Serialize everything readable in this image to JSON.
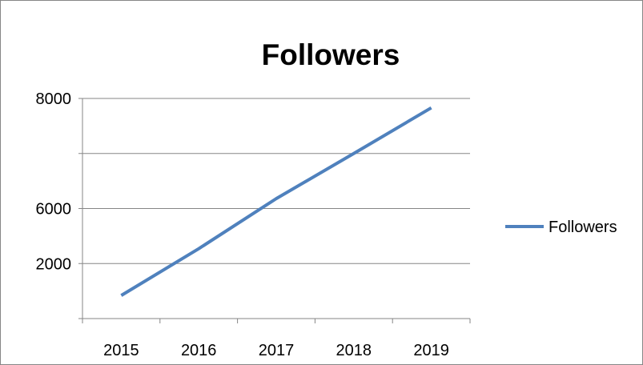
{
  "chart_data": {
    "type": "line",
    "title": "Followers",
    "categories": [
      "2015",
      "2016",
      "2017",
      "2018",
      "2019"
    ],
    "y_tick_labels": [
      "8000",
      "",
      "6000",
      "2000",
      ""
    ],
    "series": [
      {
        "name": "Followers",
        "values": [
          0.42,
          1.27,
          2.18,
          3.0,
          3.83
        ],
        "color": "#4f81bd"
      }
    ],
    "ylim": [
      0,
      4
    ],
    "grid": true,
    "legend_position": "right"
  }
}
